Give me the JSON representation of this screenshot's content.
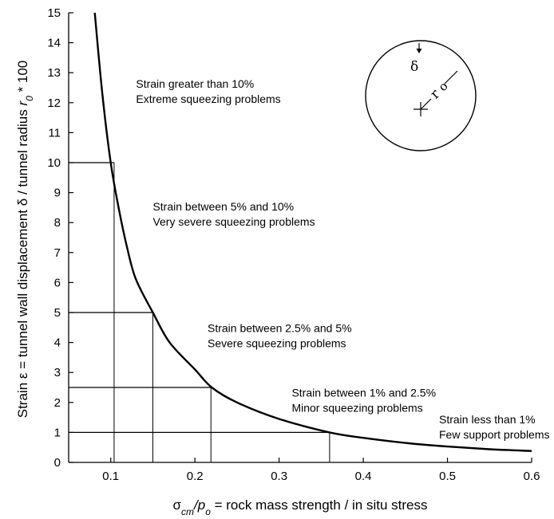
{
  "chart_data": {
    "type": "line",
    "xlabel": {
      "symbol": "σ",
      "sub1": "cm",
      "mid": "/p",
      "sub2": "o",
      "rest": " = rock mass strength / in situ stress"
    },
    "ylabel": {
      "part1": "Strain ε = tunnel wall displacement  δ / tunnel radius ",
      "r": "r",
      "rsub": "0",
      "rest": " * 100"
    },
    "xlim": [
      0.05,
      0.6
    ],
    "ylim": [
      0,
      15
    ],
    "x_ticks": [
      0.1,
      0.2,
      0.3,
      0.4,
      0.5,
      0.6
    ],
    "x_tick_labels": [
      "0.1",
      "0.2",
      "0.3",
      "0.4",
      "0.5",
      "0.6"
    ],
    "y_ticks": [
      0,
      1,
      2,
      3,
      4,
      5,
      6,
      7,
      8,
      9,
      10,
      11,
      12,
      13,
      14,
      15
    ],
    "y_tick_labels": [
      "0",
      "1",
      "2",
      "3",
      "4",
      "5",
      "6",
      "7",
      "8",
      "9",
      "10",
      "11",
      "12",
      "13",
      "14",
      "15"
    ],
    "grid": false,
    "series": [
      {
        "x": [
          0.081,
          0.09,
          0.1,
          0.11,
          0.12,
          0.13,
          0.15,
          0.17,
          0.2,
          0.22,
          0.25,
          0.3,
          0.36,
          0.4,
          0.45,
          0.5,
          0.55,
          0.6
        ],
        "y": [
          15.0,
          12.3,
          10.0,
          8.4,
          7.1,
          6.1,
          5.0,
          4.0,
          3.1,
          2.5,
          2.0,
          1.45,
          1.0,
          0.82,
          0.65,
          0.53,
          0.44,
          0.38
        ],
        "color": "#000000"
      }
    ],
    "threshold_lines": [
      {
        "x": 0.104,
        "y": 10
      },
      {
        "x": 0.15,
        "y": 5
      },
      {
        "x": 0.219,
        "y": 2.5
      },
      {
        "x": 0.36,
        "y": 1
      }
    ],
    "annotations": [
      {
        "line1": "Strain greater than 10%",
        "line2": "Extreme squeezing problems",
        "x": 0.13,
        "y": 12.5
      },
      {
        "line1": "Strain between 5% and 10%",
        "line2": "Very severe squeezing problems",
        "x": 0.15,
        "y": 8.4
      },
      {
        "line1": "Strain between 2.5% and 5%",
        "line2": "Severe squeezing problems",
        "x": 0.215,
        "y": 4.35
      },
      {
        "line1": "Strain between 1% and 2.5%",
        "line2": "Minor squeezing problems",
        "x": 0.315,
        "y": 2.2
      },
      {
        "line1": "Strain less than 1%",
        "line2": "Few support problems",
        "x": 0.49,
        "y": 1.3
      }
    ],
    "inset": {
      "delta": "δ",
      "r": "r",
      "rsub": "o"
    }
  }
}
